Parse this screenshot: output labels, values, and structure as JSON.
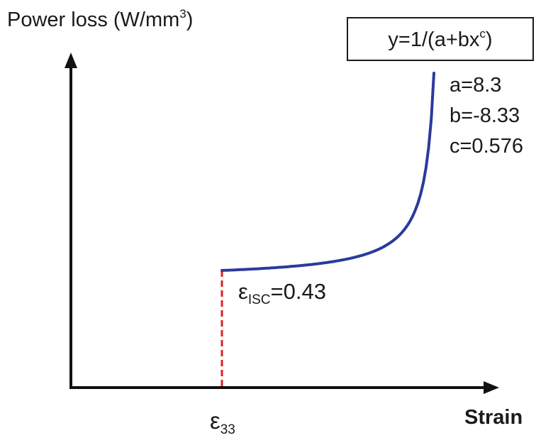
{
  "chart_data": {
    "type": "line",
    "ylabel": "Power loss (W/mm",
    "ylabel_sup": "3",
    "ylabel_end": ")",
    "xlabel": "Strain",
    "equation_main": "y=1/(a+bx",
    "equation_sup": "c",
    "equation_end": ")",
    "params": [
      "a=8.3",
      "b=-8.33",
      "c=0.576"
    ],
    "threshold_symbol": "ε",
    "threshold_sub": "ISC",
    "threshold_value": "=0.43",
    "x_tick_symbol": "ε",
    "x_tick_sub": "33",
    "formula": {
      "a": 8.3,
      "b": -8.33,
      "c": 0.576
    },
    "curve_x_range": [
      0.43,
      0.97
    ],
    "colors": {
      "curve": "#2b3a9c",
      "threshold": "#e02020",
      "axis": "#111111"
    },
    "grid": false,
    "legend": "none"
  }
}
